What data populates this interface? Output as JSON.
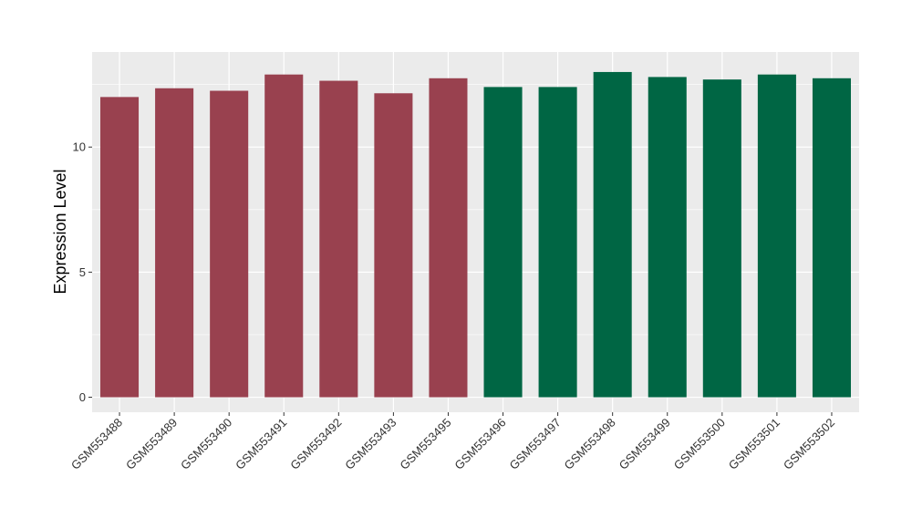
{
  "chart_data": {
    "type": "bar",
    "title": "",
    "xlabel": "",
    "ylabel": "Expression Level",
    "ylim": [
      -0.6,
      13.8
    ],
    "yticks": [
      0,
      5,
      10
    ],
    "grid": true,
    "legend": "none",
    "categories": [
      "GSM553488",
      "GSM553489",
      "GSM553490",
      "GSM553491",
      "GSM553492",
      "GSM553493",
      "GSM553495",
      "GSM553496",
      "GSM553497",
      "GSM553498",
      "GSM553499",
      "GSM553500",
      "GSM553501",
      "GSM553502"
    ],
    "values": [
      12.0,
      12.35,
      12.25,
      12.9,
      12.65,
      12.15,
      12.75,
      12.4,
      12.4,
      13.0,
      12.8,
      12.7,
      12.9,
      12.75
    ],
    "bar_colors": [
      "#99414F",
      "#99414F",
      "#99414F",
      "#99414F",
      "#99414F",
      "#99414F",
      "#99414F",
      "#006644",
      "#006644",
      "#006644",
      "#006644",
      "#006644",
      "#006644",
      "#006644"
    ],
    "panel_background": "#EBEBEB",
    "grid_color": "#FFFFFF"
  }
}
